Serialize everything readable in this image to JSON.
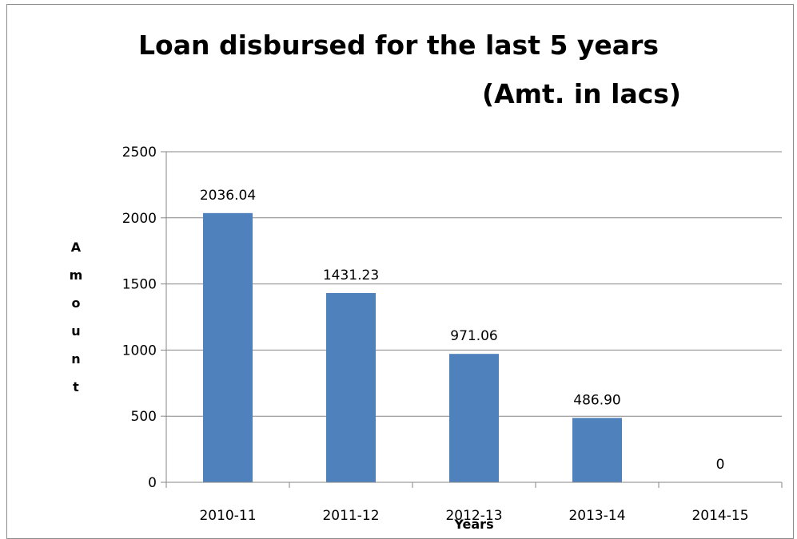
{
  "chart_data": {
    "type": "bar",
    "title": "Loan disbursed for the last 5 years",
    "subtitle": "(Amt. in lacs)",
    "xlabel": "Years",
    "ylabel": "Amount",
    "ylabel_letters": [
      "A",
      "m",
      "o",
      "u",
      "n",
      "t"
    ],
    "categories": [
      "2010-11",
      "2011-12",
      "2012-13",
      "2013-14",
      "2014-15"
    ],
    "values": [
      2036.04,
      1431.23,
      971.06,
      486.9,
      0
    ],
    "value_labels": [
      "2036.04",
      "1431.23",
      "971.06",
      "486.90",
      "0"
    ],
    "ylim": [
      0,
      2500
    ],
    "yticks": [
      0,
      500,
      1000,
      1500,
      2000,
      2500
    ],
    "grid": true,
    "colors": {
      "bar": "#4f81bd",
      "grid": "#868686",
      "axis": "#868686"
    }
  }
}
